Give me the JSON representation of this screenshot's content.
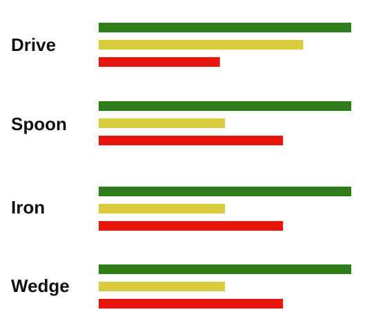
{
  "chart_data": {
    "type": "bar",
    "orientation": "horizontal",
    "title": "",
    "xlabel": "",
    "ylabel": "",
    "xlim": [
      0,
      100
    ],
    "grid": false,
    "legend": "none",
    "categories": [
      "Drive",
      "Spoon",
      "Iron",
      "Wedge"
    ],
    "series": [
      {
        "color": "#2e7d1a",
        "values": [
          100,
          100,
          100,
          100
        ]
      },
      {
        "color": "#d9cc3f",
        "values": [
          81,
          50,
          50,
          50
        ]
      },
      {
        "color": "#e8140e",
        "values": [
          48,
          73,
          73,
          73
        ]
      }
    ]
  }
}
